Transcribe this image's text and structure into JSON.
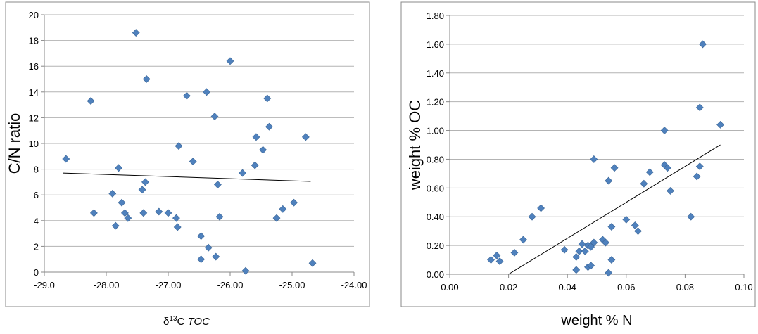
{
  "chart_data": [
    {
      "type": "scatter",
      "xlabel_prefix": "δ",
      "xlabel_sup": "13",
      "xlabel_element": "C",
      "xlabel_italic": "TOC",
      "ylabel": "C/N ratio",
      "xlim": [
        -29,
        -24
      ],
      "ylim": [
        0,
        20
      ],
      "x_ticks": [
        "-29.0",
        "-28.00",
        "-27.00",
        "-26.00",
        "-25.00",
        "-24.00"
      ],
      "y_ticks": [
        "0",
        "2",
        "4",
        "6",
        "8",
        "10",
        "12",
        "14",
        "16",
        "18",
        "20"
      ],
      "grid": true,
      "legend": "none",
      "marker_color": "#4f81bd",
      "trendline": {
        "x": [
          -28.7,
          -24.7
        ],
        "y": [
          7.7,
          7.05
        ]
      },
      "points": [
        {
          "x": -28.65,
          "y": 8.8
        },
        {
          "x": -28.25,
          "y": 13.3
        },
        {
          "x": -28.2,
          "y": 4.6
        },
        {
          "x": -27.9,
          "y": 6.1
        },
        {
          "x": -27.85,
          "y": 3.6
        },
        {
          "x": -27.8,
          "y": 8.1
        },
        {
          "x": -27.75,
          "y": 5.4
        },
        {
          "x": -27.7,
          "y": 4.6
        },
        {
          "x": -27.65,
          "y": 4.2
        },
        {
          "x": -27.52,
          "y": 18.6
        },
        {
          "x": -27.42,
          "y": 6.4
        },
        {
          "x": -27.4,
          "y": 4.6
        },
        {
          "x": -27.37,
          "y": 7.0
        },
        {
          "x": -27.35,
          "y": 15.0
        },
        {
          "x": -27.15,
          "y": 4.7
        },
        {
          "x": -27.0,
          "y": 4.6
        },
        {
          "x": -26.87,
          "y": 4.2
        },
        {
          "x": -26.85,
          "y": 3.5
        },
        {
          "x": -26.83,
          "y": 9.8
        },
        {
          "x": -26.7,
          "y": 13.7
        },
        {
          "x": -26.6,
          "y": 8.6
        },
        {
          "x": -26.47,
          "y": 2.8
        },
        {
          "x": -26.47,
          "y": 1.0
        },
        {
          "x": -26.38,
          "y": 14.0
        },
        {
          "x": -26.35,
          "y": 1.9
        },
        {
          "x": -26.25,
          "y": 12.1
        },
        {
          "x": -26.23,
          "y": 1.2
        },
        {
          "x": -26.2,
          "y": 6.8
        },
        {
          "x": -26.17,
          "y": 4.3
        },
        {
          "x": -26.0,
          "y": 16.4
        },
        {
          "x": -25.8,
          "y": 7.7
        },
        {
          "x": -25.75,
          "y": 0.1
        },
        {
          "x": -25.6,
          "y": 8.3
        },
        {
          "x": -25.58,
          "y": 10.5
        },
        {
          "x": -25.47,
          "y": 9.5
        },
        {
          "x": -25.4,
          "y": 13.5
        },
        {
          "x": -25.37,
          "y": 11.3
        },
        {
          "x": -25.25,
          "y": 4.2
        },
        {
          "x": -25.15,
          "y": 4.9
        },
        {
          "x": -24.97,
          "y": 5.4
        },
        {
          "x": -24.78,
          "y": 10.5
        },
        {
          "x": -24.67,
          "y": 0.7
        }
      ]
    },
    {
      "type": "scatter",
      "xlabel": "weight % N",
      "ylabel": "weight % OC",
      "xlim": [
        0,
        0.1
      ],
      "ylim": [
        0,
        1.8
      ],
      "x_ticks": [
        "0.00",
        "0.02",
        "0.04",
        "0.06",
        "0.08",
        "0.10"
      ],
      "y_ticks": [
        "0.00",
        "0.20",
        "0.40",
        "0.60",
        "0.80",
        "1.00",
        "1.20",
        "1.40",
        "1.60",
        "1.80"
      ],
      "grid": true,
      "legend": "none",
      "marker_color": "#4f81bd",
      "trendline": {
        "x": [
          0.02,
          0.092
        ],
        "y": [
          0.0,
          0.9
        ]
      },
      "points": [
        {
          "x": 0.014,
          "y": 0.1
        },
        {
          "x": 0.016,
          "y": 0.13
        },
        {
          "x": 0.017,
          "y": 0.09
        },
        {
          "x": 0.022,
          "y": 0.15
        },
        {
          "x": 0.025,
          "y": 0.24
        },
        {
          "x": 0.028,
          "y": 0.4
        },
        {
          "x": 0.031,
          "y": 0.46
        },
        {
          "x": 0.039,
          "y": 0.17
        },
        {
          "x": 0.043,
          "y": 0.03
        },
        {
          "x": 0.043,
          "y": 0.12
        },
        {
          "x": 0.044,
          "y": 0.16
        },
        {
          "x": 0.045,
          "y": 0.21
        },
        {
          "x": 0.046,
          "y": 0.16
        },
        {
          "x": 0.047,
          "y": 0.2
        },
        {
          "x": 0.047,
          "y": 0.05
        },
        {
          "x": 0.048,
          "y": 0.19
        },
        {
          "x": 0.048,
          "y": 0.06
        },
        {
          "x": 0.049,
          "y": 0.22
        },
        {
          "x": 0.049,
          "y": 0.8
        },
        {
          "x": 0.052,
          "y": 0.24
        },
        {
          "x": 0.053,
          "y": 0.22
        },
        {
          "x": 0.054,
          "y": 0.65
        },
        {
          "x": 0.054,
          "y": 0.01
        },
        {
          "x": 0.055,
          "y": 0.33
        },
        {
          "x": 0.055,
          "y": 0.1
        },
        {
          "x": 0.056,
          "y": 0.74
        },
        {
          "x": 0.06,
          "y": 0.38
        },
        {
          "x": 0.063,
          "y": 0.34
        },
        {
          "x": 0.064,
          "y": 0.3
        },
        {
          "x": 0.066,
          "y": 0.63
        },
        {
          "x": 0.068,
          "y": 0.71
        },
        {
          "x": 0.073,
          "y": 1.0
        },
        {
          "x": 0.073,
          "y": 0.76
        },
        {
          "x": 0.074,
          "y": 0.74
        },
        {
          "x": 0.075,
          "y": 0.58
        },
        {
          "x": 0.082,
          "y": 0.4
        },
        {
          "x": 0.084,
          "y": 0.68
        },
        {
          "x": 0.085,
          "y": 0.75
        },
        {
          "x": 0.085,
          "y": 1.16
        },
        {
          "x": 0.086,
          "y": 1.6
        },
        {
          "x": 0.092,
          "y": 1.04
        }
      ]
    }
  ]
}
